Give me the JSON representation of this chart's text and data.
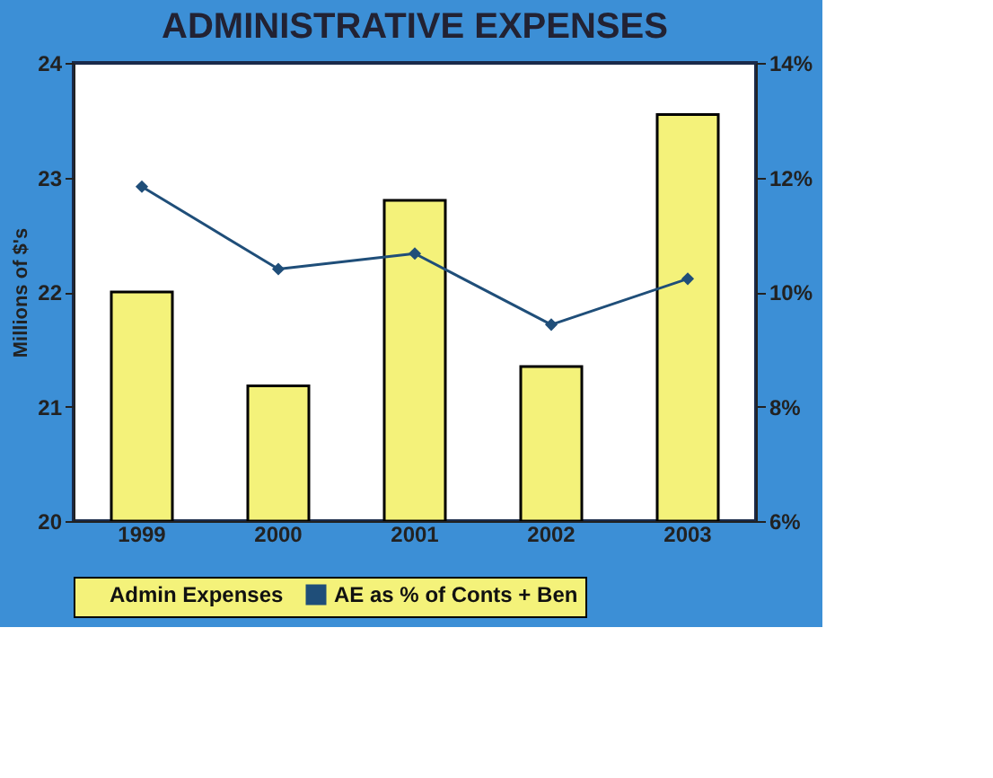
{
  "chart_data": {
    "type": "bar",
    "title": "ADMINISTRATIVE EXPENSES",
    "ylabel": "Millions of $'s",
    "categories": [
      "1999",
      "2000",
      "2001",
      "2002",
      "2003"
    ],
    "series": [
      {
        "name": "Admin Expenses",
        "color": "#f4f27a",
        "values": [
          22.0,
          21.18,
          22.8,
          21.35,
          23.55
        ]
      },
      {
        "name": "AE as % of Conts + Ben",
        "type": "line",
        "axis": "y2",
        "color": "#1f4e79",
        "marker": "diamond",
        "values": [
          11.84,
          10.4,
          10.67,
          9.43,
          10.23
        ]
      }
    ],
    "ylim": [
      20,
      24
    ],
    "yticks": [
      20,
      21,
      22,
      23,
      24
    ],
    "y2lim": [
      6,
      14
    ],
    "y2ticks": [
      {
        "value": 6,
        "label": "6%"
      },
      {
        "value": 8,
        "label": "8%"
      },
      {
        "value": 10,
        "label": "10%"
      },
      {
        "value": 12,
        "label": "12%"
      },
      {
        "value": 14,
        "label": "14%"
      }
    ],
    "grid": false,
    "legend": "bottom"
  }
}
